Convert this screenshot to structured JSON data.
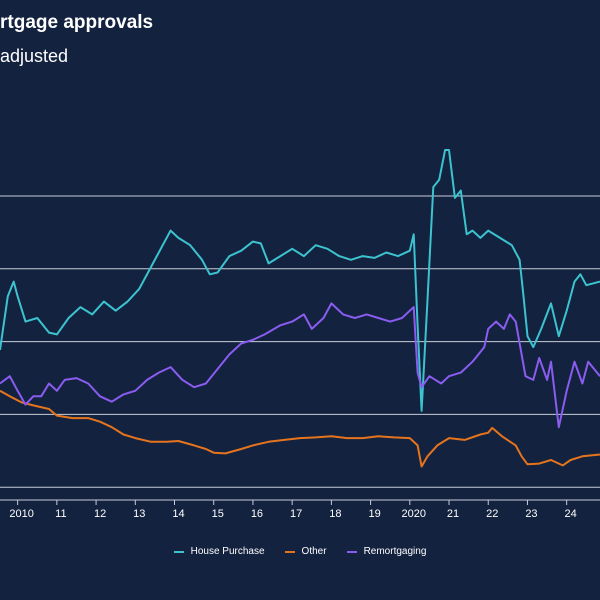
{
  "header": {
    "title": "rtgage approvals",
    "subtitle": "adjusted"
  },
  "chart_data": {
    "type": "line",
    "title": "rtgage approvals",
    "subtitle": "adjusted",
    "xlabel": "",
    "ylabel": "",
    "grid": true,
    "legend_position": "bottom",
    "ylim": [
      0,
      1000
    ],
    "xlim": [
      2009.55,
      2024.85
    ],
    "x_ticks": [
      {
        "value": 2010,
        "label": "2010"
      },
      {
        "value": 2011,
        "label": "11"
      },
      {
        "value": 2012,
        "label": "12"
      },
      {
        "value": 2013,
        "label": "13"
      },
      {
        "value": 2014,
        "label": "14"
      },
      {
        "value": 2015,
        "label": "15"
      },
      {
        "value": 2016,
        "label": "16"
      },
      {
        "value": 2017,
        "label": "17"
      },
      {
        "value": 2018,
        "label": "18"
      },
      {
        "value": 2019,
        "label": "19"
      },
      {
        "value": 2020,
        "label": "2020"
      },
      {
        "value": 2021,
        "label": "21"
      },
      {
        "value": 2022,
        "label": "22"
      },
      {
        "value": 2023,
        "label": "23"
      },
      {
        "value": 2024,
        "label": "24"
      }
    ],
    "gridlines": [
      200,
      400,
      600,
      800,
      1000
    ],
    "series": [
      {
        "name": "House Purchase",
        "color": "#3cc3cf",
        "points": [
          [
            2009.55,
            412
          ],
          [
            2009.75,
            560
          ],
          [
            2009.9,
            600
          ],
          [
            2010.0,
            560
          ],
          [
            2010.2,
            490
          ],
          [
            2010.5,
            500
          ],
          [
            2010.8,
            460
          ],
          [
            2011.0,
            455
          ],
          [
            2011.3,
            500
          ],
          [
            2011.6,
            530
          ],
          [
            2011.9,
            510
          ],
          [
            2012.2,
            545
          ],
          [
            2012.5,
            520
          ],
          [
            2012.8,
            545
          ],
          [
            2013.1,
            580
          ],
          [
            2013.4,
            640
          ],
          [
            2013.7,
            700
          ],
          [
            2013.9,
            740
          ],
          [
            2014.1,
            720
          ],
          [
            2014.4,
            700
          ],
          [
            2014.7,
            660
          ],
          [
            2014.9,
            620
          ],
          [
            2015.1,
            625
          ],
          [
            2015.4,
            670
          ],
          [
            2015.7,
            685
          ],
          [
            2016.0,
            710
          ],
          [
            2016.2,
            705
          ],
          [
            2016.4,
            650
          ],
          [
            2016.7,
            670
          ],
          [
            2017.0,
            690
          ],
          [
            2017.3,
            670
          ],
          [
            2017.6,
            700
          ],
          [
            2017.9,
            690
          ],
          [
            2018.2,
            670
          ],
          [
            2018.5,
            660
          ],
          [
            2018.8,
            670
          ],
          [
            2019.1,
            665
          ],
          [
            2019.4,
            680
          ],
          [
            2019.7,
            670
          ],
          [
            2020.0,
            685
          ],
          [
            2020.1,
            730
          ],
          [
            2020.2,
            480
          ],
          [
            2020.3,
            245
          ],
          [
            2020.45,
            550
          ],
          [
            2020.6,
            860
          ],
          [
            2020.75,
            880
          ],
          [
            2020.9,
            1080
          ],
          [
            2021.0,
            1000
          ],
          [
            2021.15,
            830
          ],
          [
            2021.3,
            850
          ],
          [
            2021.45,
            730
          ],
          [
            2021.6,
            740
          ],
          [
            2021.8,
            720
          ],
          [
            2022.0,
            740
          ],
          [
            2022.3,
            720
          ],
          [
            2022.6,
            700
          ],
          [
            2022.8,
            660
          ],
          [
            2022.9,
            560
          ],
          [
            2023.0,
            450
          ],
          [
            2023.15,
            420
          ],
          [
            2023.35,
            470
          ],
          [
            2023.6,
            540
          ],
          [
            2023.8,
            450
          ],
          [
            2024.0,
            520
          ],
          [
            2024.2,
            600
          ],
          [
            2024.35,
            620
          ],
          [
            2024.5,
            590
          ],
          [
            2024.85,
            600
          ]
        ]
      },
      {
        "name": "Other",
        "color": "#e6741d",
        "points": [
          [
            2009.55,
            300
          ],
          [
            2009.8,
            285
          ],
          [
            2010.1,
            268
          ],
          [
            2010.4,
            260
          ],
          [
            2010.8,
            250
          ],
          [
            2011.0,
            232
          ],
          [
            2011.4,
            225
          ],
          [
            2011.8,
            225
          ],
          [
            2012.1,
            215
          ],
          [
            2012.4,
            200
          ],
          [
            2012.7,
            180
          ],
          [
            2013.0,
            170
          ],
          [
            2013.4,
            160
          ],
          [
            2013.8,
            160
          ],
          [
            2014.1,
            162
          ],
          [
            2014.5,
            150
          ],
          [
            2014.8,
            140
          ],
          [
            2015.0,
            130
          ],
          [
            2015.3,
            128
          ],
          [
            2015.7,
            140
          ],
          [
            2016.0,
            150
          ],
          [
            2016.4,
            160
          ],
          [
            2016.8,
            165
          ],
          [
            2017.2,
            170
          ],
          [
            2017.6,
            172
          ],
          [
            2018.0,
            175
          ],
          [
            2018.4,
            170
          ],
          [
            2018.8,
            170
          ],
          [
            2019.2,
            175
          ],
          [
            2019.6,
            172
          ],
          [
            2020.0,
            170
          ],
          [
            2020.2,
            150
          ],
          [
            2020.3,
            92
          ],
          [
            2020.45,
            120
          ],
          [
            2020.7,
            150
          ],
          [
            2021.0,
            170
          ],
          [
            2021.4,
            165
          ],
          [
            2021.8,
            180
          ],
          [
            2022.0,
            185
          ],
          [
            2022.1,
            198
          ],
          [
            2022.35,
            175
          ],
          [
            2022.7,
            150
          ],
          [
            2022.85,
            120
          ],
          [
            2023.0,
            98
          ],
          [
            2023.3,
            100
          ],
          [
            2023.6,
            110
          ],
          [
            2023.9,
            95
          ],
          [
            2024.1,
            110
          ],
          [
            2024.4,
            120
          ],
          [
            2024.85,
            125
          ]
        ]
      },
      {
        "name": "Remortgaging",
        "color": "#8a5cf0",
        "points": [
          [
            2009.55,
            320
          ],
          [
            2009.8,
            340
          ],
          [
            2010.0,
            300
          ],
          [
            2010.2,
            262
          ],
          [
            2010.4,
            285
          ],
          [
            2010.6,
            285
          ],
          [
            2010.8,
            320
          ],
          [
            2011.0,
            300
          ],
          [
            2011.2,
            330
          ],
          [
            2011.5,
            335
          ],
          [
            2011.8,
            320
          ],
          [
            2012.1,
            285
          ],
          [
            2012.4,
            270
          ],
          [
            2012.7,
            290
          ],
          [
            2013.0,
            300
          ],
          [
            2013.3,
            330
          ],
          [
            2013.6,
            350
          ],
          [
            2013.9,
            365
          ],
          [
            2014.2,
            330
          ],
          [
            2014.5,
            310
          ],
          [
            2014.8,
            320
          ],
          [
            2015.1,
            360
          ],
          [
            2015.4,
            400
          ],
          [
            2015.7,
            430
          ],
          [
            2016.0,
            440
          ],
          [
            2016.3,
            455
          ],
          [
            2016.7,
            480
          ],
          [
            2017.0,
            490
          ],
          [
            2017.3,
            510
          ],
          [
            2017.5,
            470
          ],
          [
            2017.8,
            500
          ],
          [
            2018.0,
            540
          ],
          [
            2018.3,
            510
          ],
          [
            2018.6,
            500
          ],
          [
            2018.9,
            510
          ],
          [
            2019.2,
            500
          ],
          [
            2019.5,
            490
          ],
          [
            2019.8,
            500
          ],
          [
            2020.0,
            520
          ],
          [
            2020.1,
            530
          ],
          [
            2020.2,
            350
          ],
          [
            2020.3,
            310
          ],
          [
            2020.5,
            340
          ],
          [
            2020.8,
            320
          ],
          [
            2021.0,
            340
          ],
          [
            2021.3,
            350
          ],
          [
            2021.6,
            380
          ],
          [
            2021.9,
            420
          ],
          [
            2022.0,
            470
          ],
          [
            2022.2,
            490
          ],
          [
            2022.4,
            470
          ],
          [
            2022.55,
            510
          ],
          [
            2022.7,
            490
          ],
          [
            2022.85,
            400
          ],
          [
            2022.95,
            340
          ],
          [
            2023.15,
            330
          ],
          [
            2023.3,
            390
          ],
          [
            2023.5,
            330
          ],
          [
            2023.6,
            380
          ],
          [
            2023.8,
            200
          ],
          [
            2024.0,
            300
          ],
          [
            2024.2,
            380
          ],
          [
            2024.4,
            320
          ],
          [
            2024.55,
            380
          ],
          [
            2024.85,
            340
          ]
        ]
      }
    ]
  }
}
